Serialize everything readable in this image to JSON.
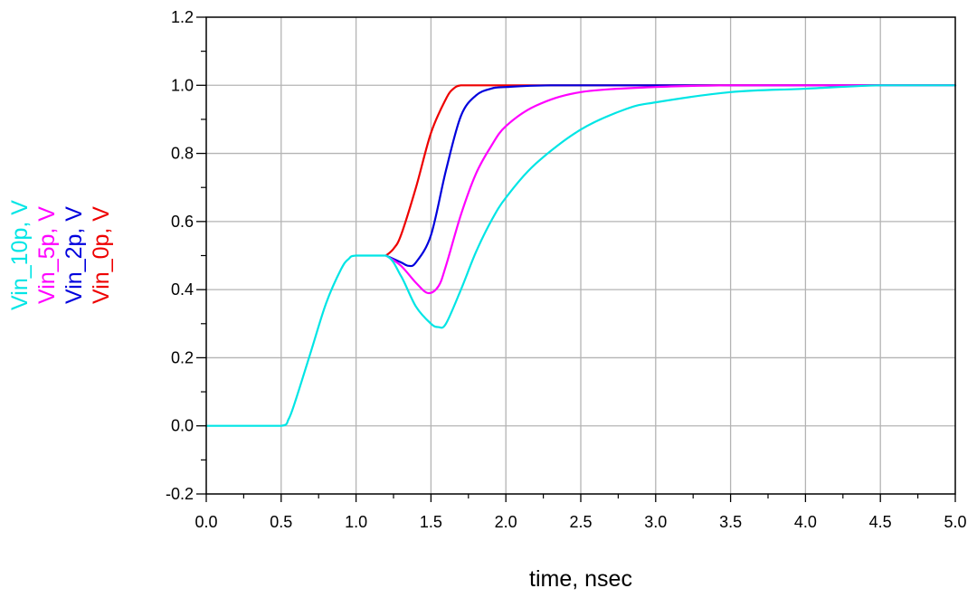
{
  "chart_data": {
    "type": "line",
    "xlabel": "time, nsec",
    "xlim": [
      0.0,
      5.0
    ],
    "ylim": [
      -0.2,
      1.2
    ],
    "x_ticks": [
      "0.0",
      "0.5",
      "1.0",
      "1.5",
      "2.0",
      "2.5",
      "3.0",
      "3.5",
      "4.0",
      "4.5",
      "5.0"
    ],
    "y_ticks": [
      "-0.2",
      "0.0",
      "0.2",
      "0.4",
      "0.6",
      "0.8",
      "1.0",
      "1.2"
    ],
    "grid": true,
    "legend_placement": "left (rotated, stacked)",
    "series": [
      {
        "name": "Vin_10p, V",
        "color": "#00e5e5",
        "x": [
          0.0,
          0.5,
          0.55,
          0.6,
          0.7,
          0.8,
          0.9,
          0.95,
          1.0,
          1.2,
          1.3,
          1.4,
          1.5,
          1.55,
          1.6,
          1.7,
          1.8,
          1.9,
          2.0,
          2.2,
          2.5,
          2.8,
          3.0,
          3.5,
          4.0,
          4.5,
          5.0
        ],
        "y": [
          0.0,
          0.0,
          0.02,
          0.08,
          0.22,
          0.36,
          0.46,
          0.49,
          0.5,
          0.5,
          0.44,
          0.35,
          0.3,
          0.29,
          0.3,
          0.4,
          0.51,
          0.6,
          0.67,
          0.77,
          0.87,
          0.93,
          0.95,
          0.98,
          0.99,
          1.0,
          1.0
        ]
      },
      {
        "name": "Vin_5p, V",
        "color": "#ff00ff",
        "x": [
          1.2,
          1.3,
          1.4,
          1.48,
          1.55,
          1.6,
          1.7,
          1.8,
          1.9,
          2.0,
          2.2,
          2.5,
          3.0,
          3.5,
          4.0,
          5.0
        ],
        "y": [
          0.5,
          0.47,
          0.42,
          0.39,
          0.41,
          0.47,
          0.62,
          0.74,
          0.82,
          0.88,
          0.94,
          0.98,
          0.995,
          1.0,
          1.0,
          1.0
        ]
      },
      {
        "name": "Vin_2p, V",
        "color": "#0000dd",
        "x": [
          1.2,
          1.3,
          1.35,
          1.4,
          1.5,
          1.6,
          1.7,
          1.8,
          1.9,
          2.0,
          2.3,
          3.0,
          5.0
        ],
        "y": [
          0.5,
          0.48,
          0.47,
          0.48,
          0.56,
          0.75,
          0.91,
          0.97,
          0.99,
          0.995,
          1.0,
          1.0,
          1.0
        ]
      },
      {
        "name": "Vin_0p, V",
        "color": "#ee0000",
        "x": [
          1.2,
          1.25,
          1.3,
          1.4,
          1.5,
          1.6,
          1.65,
          1.7,
          1.8,
          2.0,
          5.0
        ],
        "y": [
          0.5,
          0.52,
          0.56,
          0.7,
          0.86,
          0.96,
          0.99,
          1.0,
          1.0,
          1.0,
          1.0
        ]
      }
    ]
  }
}
